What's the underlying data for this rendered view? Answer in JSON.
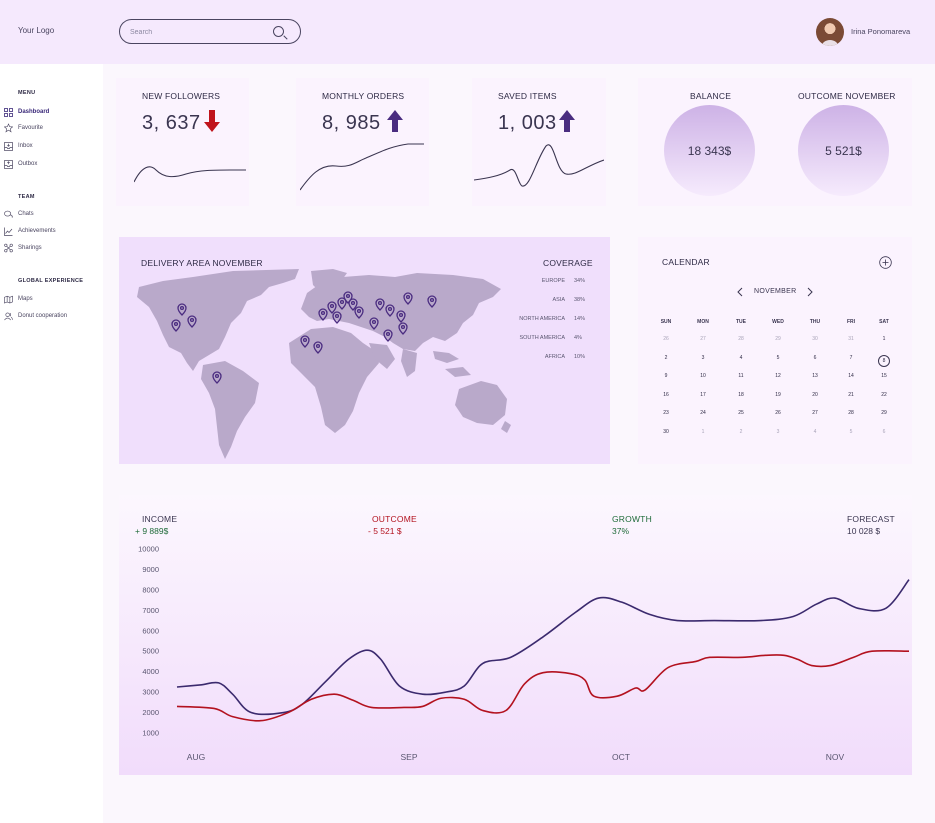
{
  "header": {
    "logo": "Your Logo",
    "search_placeholder": "Search",
    "user_name": "Irina Ponomareva"
  },
  "sidebar": {
    "menu_heading": "MENU",
    "menu_items": [
      {
        "label": "Dashboard",
        "icon": "dashboard-icon",
        "active": true
      },
      {
        "label": "Favourite",
        "icon": "star-icon"
      },
      {
        "label": "Inbox",
        "icon": "inbox-icon"
      },
      {
        "label": "Outbox",
        "icon": "outbox-icon"
      }
    ],
    "team_heading": "TEAM",
    "team_items": [
      {
        "label": "Chats",
        "icon": "chat-icon"
      },
      {
        "label": "Achievements",
        "icon": "chart-icon"
      },
      {
        "label": "Sharings",
        "icon": "share-icon"
      }
    ],
    "global_heading": "GLOBAL EXPERIENCE",
    "global_items": [
      {
        "label": "Maps",
        "icon": "map-icon"
      },
      {
        "label": "Donut cooperation",
        "icon": "users-icon"
      }
    ]
  },
  "stats": {
    "followers": {
      "title": "NEW FOLLOWERS",
      "value": "3, 637",
      "trend": "down"
    },
    "orders": {
      "title": "MONTHLY ORDERS",
      "value": "8, 985",
      "trend": "up"
    },
    "saved": {
      "title": "SAVED ITEMS",
      "value": "1, 003",
      "trend": "up"
    },
    "balance": {
      "title": "BALANCE",
      "value": "18 343$"
    },
    "outcome": {
      "title": "OUTCOME NOVEMBER",
      "value": "5 521$"
    }
  },
  "delivery": {
    "title": "DELIVERY AREA NOVEMBER",
    "coverage_title": "COVERAGE",
    "coverage": [
      {
        "region": "EUROPE",
        "value": "34%"
      },
      {
        "region": "ASIA",
        "value": "38%"
      },
      {
        "region": "NORTH AMERICA",
        "value": "14%"
      },
      {
        "region": "SOUTH AMERICA",
        "value": "4%"
      },
      {
        "region": "AFRICA",
        "value": "10%"
      }
    ]
  },
  "calendar": {
    "title": "CALENDAR",
    "month": "NOVEMBER",
    "weekdays": [
      "SUN",
      "MON",
      "TUE",
      "WED",
      "THU",
      "FRI",
      "SAT"
    ],
    "weeks": [
      [
        "26",
        "27",
        "28",
        "29",
        "30",
        "31",
        "1"
      ],
      [
        "2",
        "3",
        "4",
        "5",
        "6",
        "7",
        "8"
      ],
      [
        "9",
        "10",
        "11",
        "12",
        "13",
        "14",
        "15"
      ],
      [
        "16",
        "17",
        "18",
        "19",
        "20",
        "21",
        "22"
      ],
      [
        "23",
        "24",
        "25",
        "26",
        "27",
        "28",
        "29"
      ],
      [
        "30",
        "1",
        "2",
        "3",
        "4",
        "5",
        "6"
      ]
    ],
    "today": "8"
  },
  "income": {
    "income_label": "INCOME",
    "income_value": "+ 9 889$",
    "outcome_label": "OUTCOME",
    "outcome_value": "- 5 521 $",
    "growth_label": "GROWTH",
    "growth_value": "37%",
    "forecast_label": "FORECAST",
    "forecast_value": "10 028 $"
  },
  "colors": {
    "income_line": "#3b2a6e",
    "outcome_line": "#b3121f",
    "up_arrow": "#4a2c80",
    "down_arrow": "#c0141c",
    "growth": "#1f6b3a"
  },
  "chart_data": {
    "type": "line",
    "x_labels": [
      "AUG",
      "SEP",
      "OCT",
      "NOV"
    ],
    "ylim": [
      1000,
      10000
    ],
    "yticks": [
      10000,
      9000,
      8000,
      7000,
      6000,
      5000,
      4000,
      3000,
      2000,
      1000
    ],
    "series": [
      {
        "color": "#3b2a6e",
        "values": [
          [
            0,
            3250
          ],
          [
            0.25,
            3350
          ],
          [
            0.45,
            3450
          ],
          [
            0.6,
            2900
          ],
          [
            0.8,
            2000
          ],
          [
            1.15,
            2000
          ],
          [
            1.35,
            2400
          ],
          [
            1.6,
            3500
          ],
          [
            1.85,
            4600
          ],
          [
            2.05,
            5050
          ],
          [
            2.2,
            4600
          ],
          [
            2.4,
            3300
          ],
          [
            2.65,
            2900
          ],
          [
            2.9,
            3000
          ],
          [
            3.1,
            3300
          ],
          [
            3.3,
            4400
          ],
          [
            3.6,
            4700
          ],
          [
            3.95,
            5700
          ],
          [
            4.3,
            6900
          ],
          [
            4.55,
            7600
          ],
          [
            4.8,
            7400
          ],
          [
            5.1,
            6800
          ],
          [
            5.4,
            6500
          ],
          [
            5.8,
            6500
          ],
          [
            6.3,
            6500
          ],
          [
            6.65,
            6700
          ],
          [
            6.9,
            7300
          ],
          [
            7.1,
            7600
          ],
          [
            7.35,
            7100
          ],
          [
            7.65,
            7100
          ],
          [
            7.9,
            8500
          ]
        ]
      },
      {
        "color": "#b3121f",
        "values": [
          [
            0,
            2300
          ],
          [
            0.4,
            2200
          ],
          [
            0.6,
            1800
          ],
          [
            0.9,
            1600
          ],
          [
            1.2,
            2000
          ],
          [
            1.45,
            2650
          ],
          [
            1.7,
            2900
          ],
          [
            1.9,
            2600
          ],
          [
            2.1,
            2250
          ],
          [
            2.45,
            2250
          ],
          [
            2.65,
            2300
          ],
          [
            2.85,
            2700
          ],
          [
            3.1,
            2650
          ],
          [
            3.3,
            2100
          ],
          [
            3.55,
            2100
          ],
          [
            3.75,
            3400
          ],
          [
            3.95,
            3950
          ],
          [
            4.25,
            3900
          ],
          [
            4.4,
            3600
          ],
          [
            4.5,
            2800
          ],
          [
            4.75,
            2800
          ],
          [
            4.95,
            3200
          ],
          [
            5.05,
            3100
          ],
          [
            5.3,
            4200
          ],
          [
            5.6,
            4500
          ],
          [
            5.75,
            4700
          ],
          [
            6.1,
            4700
          ],
          [
            6.35,
            4800
          ],
          [
            6.55,
            4800
          ],
          [
            6.7,
            4600
          ],
          [
            6.85,
            4300
          ],
          [
            7.05,
            4300
          ],
          [
            7.3,
            4700
          ],
          [
            7.5,
            5000
          ],
          [
            7.9,
            5000
          ]
        ]
      }
    ]
  }
}
